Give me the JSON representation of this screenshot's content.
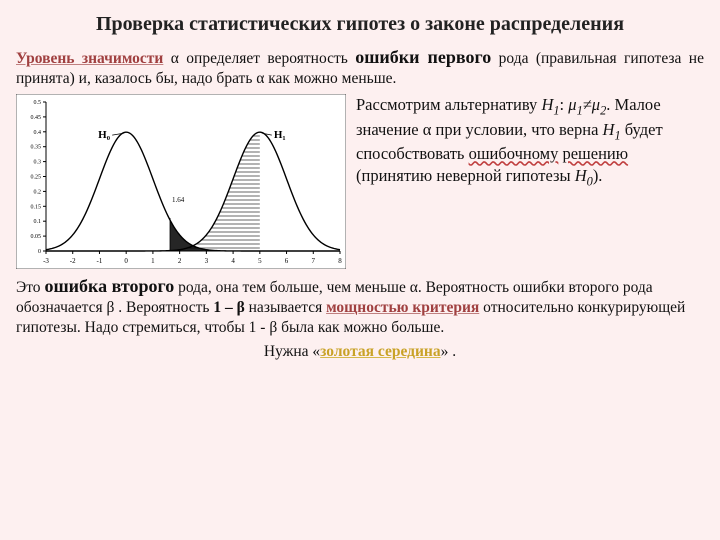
{
  "title": "Проверка статистических гипотез о законе распределения",
  "para1": {
    "accent": "Уровень значимости",
    "t1": " α определяет вероятность ",
    "err": "ошибки первого",
    "t2": " рода (правильная гипотеза не принята) и, казалось бы, надо брать α как можно меньше."
  },
  "side": {
    "l1a": "Рассмотрим альтернативу ",
    "l1b": ": ",
    "l2a": ". Малое значение α при условии, что верна ",
    "l2b": " будет способствовать ",
    "wavy1": "ошибочному",
    "wavy2": "решению",
    "l3": " (принятию неверной гипотезы ",
    "l4": ")."
  },
  "para2": {
    "t1": "Это ",
    "err2": "ошибка второго",
    "t2": " рода, она тем больше, чем меньше α. Вероятность ошибки второго рода обозначается β . Вероятность ",
    "pow0": "1 – β",
    "t3": " называется ",
    "pow": "мощностью критерия",
    "t4": " относительно конкурирующей гипотезы. Надо стремиться, чтобы 1 - β была как можно больше."
  },
  "footer": {
    "t1": "Нужна «",
    "gold": "золотая середина",
    "t2": "» ."
  },
  "chart": {
    "bg": "#ffffff",
    "axis_color": "#000000",
    "curve_color": "#000000",
    "xlim": [
      -3,
      8
    ],
    "ylim": [
      0,
      0.5
    ],
    "xticks": [
      -3,
      -2,
      -1,
      0,
      1,
      2,
      3,
      4,
      5,
      6,
      7,
      8
    ],
    "yticks": [
      0,
      0.05,
      0.1,
      0.15,
      0.2,
      0.25,
      0.3,
      0.35,
      0.4,
      0.45,
      0.5
    ],
    "mu1": 0,
    "mu2": 5,
    "sigma": 1,
    "h0_label": "H₀",
    "h1_label": "H₁",
    "crit_label": "1.64",
    "crit_x": 1.64
  }
}
